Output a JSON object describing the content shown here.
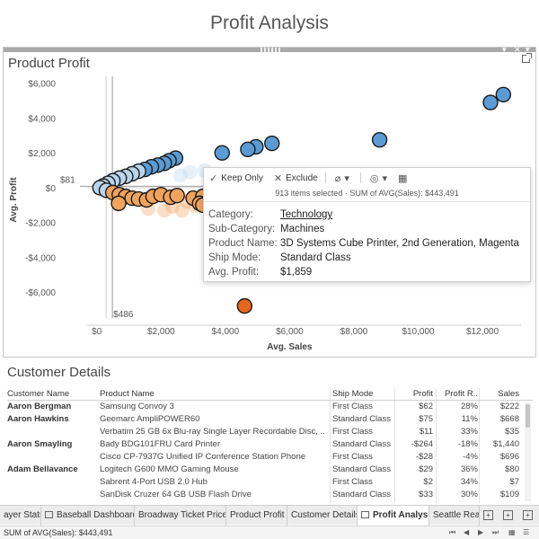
{
  "dashboard": {
    "title": "Profit Analysis"
  },
  "panel": {
    "title": "Product Profit",
    "controls": [
      "▾",
      "✕",
      "▾"
    ],
    "popout_icon": "popout-icon"
  },
  "chart_data": {
    "type": "scatter",
    "title": "Product Profit",
    "xlabel": "Avg. Sales",
    "ylabel": "Avg. Profit",
    "xlim": [
      -300,
      13200
    ],
    "ylim": [
      -7800,
      6400
    ],
    "x_ticks": [
      "$0",
      "$2,000",
      "$4,000",
      "$6,000",
      "$8,000",
      "$10,000",
      "$12,000"
    ],
    "x_tick_values": [
      0,
      2000,
      4000,
      6000,
      8000,
      10000,
      12000
    ],
    "y_ticks": [
      "$6,000",
      "$4,000",
      "$2,000",
      "$0",
      "-$2,000",
      "-$4,000",
      "-$6,000"
    ],
    "y_tick_values": [
      6000,
      4000,
      2000,
      0,
      -2000,
      -4000,
      -6000
    ],
    "reference_lines": [
      {
        "axis": "y",
        "value": 81,
        "label": "$81"
      },
      {
        "axis": "x",
        "value": 486,
        "label": "$486"
      }
    ],
    "colors": {
      "high_profit": "#5b9bd5",
      "mid_profit": "#b8d5ec",
      "low_profit": "#f0a35c",
      "loss": "#e8661c",
      "outline": "#1b1b1b"
    },
    "series": [
      {
        "group": "highlighted",
        "points": [
          [
            12250,
            4900
          ],
          [
            12650,
            5350
          ],
          [
            8800,
            2750
          ],
          [
            5450,
            2550
          ],
          [
            4950,
            2350
          ],
          [
            4700,
            2200
          ],
          [
            3900,
            2000
          ],
          [
            2450,
            1700
          ],
          [
            2250,
            1550
          ],
          [
            2100,
            1400
          ],
          [
            1900,
            1300
          ],
          [
            1700,
            1200
          ],
          [
            1500,
            1050
          ],
          [
            1300,
            950
          ],
          [
            1100,
            800
          ],
          [
            900,
            650
          ],
          [
            700,
            550
          ],
          [
            500,
            400
          ],
          [
            350,
            250
          ],
          [
            200,
            100
          ],
          [
            100,
            0
          ],
          [
            300,
            -150
          ],
          [
            500,
            -280
          ],
          [
            700,
            -400
          ],
          [
            900,
            -500
          ],
          [
            1100,
            -600
          ],
          [
            1300,
            -650
          ],
          [
            1550,
            -700
          ],
          [
            1750,
            -500
          ],
          [
            2000,
            -400
          ],
          [
            2300,
            -550
          ],
          [
            2500,
            -450
          ],
          [
            3000,
            -600
          ],
          [
            3300,
            -500
          ],
          [
            3550,
            -400
          ],
          [
            3200,
            -900
          ],
          [
            3300,
            -1000
          ],
          [
            4350,
            -1300
          ],
          [
            680,
            -900
          ],
          [
            4600,
            -6800
          ]
        ]
      },
      {
        "group": "faded",
        "points": [
          [
            2350,
            -1100
          ],
          [
            2650,
            -1300
          ],
          [
            2100,
            -1300
          ],
          [
            1600,
            -1200
          ],
          [
            3050,
            -1050
          ],
          [
            3650,
            -1200
          ],
          [
            4050,
            -950
          ],
          [
            2800,
            -800
          ],
          [
            3850,
            100
          ],
          [
            3600,
            300
          ],
          [
            3900,
            600
          ],
          [
            2600,
            700
          ],
          [
            2900,
            900
          ],
          [
            3350,
            1000
          ]
        ]
      }
    ]
  },
  "tooltip": {
    "keep_only_label": "Keep Only",
    "exclude_label": "Exclude",
    "selection_summary": "913 items selected · SUM of AVG(Sales): $443,491",
    "rows": [
      {
        "key": "Category:",
        "value": "Technology"
      },
      {
        "key": "Sub-Category:",
        "value": "Machines"
      },
      {
        "key": "Product Name:",
        "value": "3D Systems Cube Printer, 2nd Generation, Magenta"
      },
      {
        "key": "Ship Mode:",
        "value": "Standard Class"
      },
      {
        "key": "Avg. Profit:",
        "value": "$1,859"
      }
    ]
  },
  "customer_details": {
    "title": "Customer Details",
    "columns": [
      "Customer Name",
      "Product Name",
      "Ship Mode",
      "Profit",
      "Profit R..",
      "Sales"
    ],
    "rows": [
      [
        "Aaron Bergman",
        "Samsung Convoy 3",
        "First Class",
        "$62",
        "28%",
        "$222"
      ],
      [
        "Aaron Hawkins",
        "Geemarc AmpliPOWER60",
        "Standard Class",
        "$75",
        "11%",
        "$668"
      ],
      [
        "",
        "Verbatim 25 GB 6x Blu-ray Single Layer Recordable Disc, ..",
        "First Class",
        "$11",
        "33%",
        "$35"
      ],
      [
        "Aaron Smayling",
        "Bady BDG101FRU Card Printer",
        "Standard Class",
        "-$264",
        "-18%",
        "$1,440"
      ],
      [
        "",
        "Cisco CP-7937G Unified IP Conference Station Phone",
        "First Class",
        "-$28",
        "-4%",
        "$696"
      ],
      [
        "Adam Bellavance",
        "Logitech G600 MMO Gaming Mouse",
        "Standard Class",
        "$29",
        "36%",
        "$80"
      ],
      [
        "",
        "Sabrent 4-Port USB 2.0 Hub",
        "First Class",
        "$2",
        "34%",
        "$7"
      ],
      [
        "",
        "SanDisk Cruzer 64 GB USB Flash Drive",
        "Standard Class",
        "$33",
        "30%",
        "$109"
      ]
    ]
  },
  "tabs": [
    {
      "label": "ayer Stats",
      "icon": false
    },
    {
      "label": "Baseball Dashboard",
      "icon": true
    },
    {
      "label": "Broadway Ticket Prices",
      "icon": false
    },
    {
      "label": "Product Profit",
      "icon": false
    },
    {
      "label": "Customer Details",
      "icon": false
    },
    {
      "label": "Profit Analysis",
      "icon": true,
      "active": true
    },
    {
      "label": "Seattle Real E",
      "icon": false
    }
  ],
  "status_bar": {
    "text": "SUM of AVG(Sales): $443,491"
  }
}
